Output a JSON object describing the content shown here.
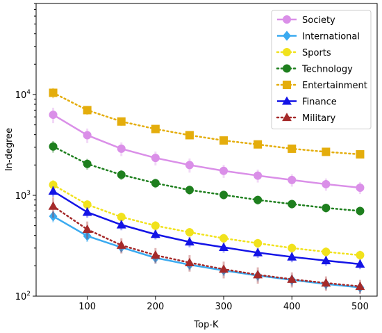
{
  "chart_data": {
    "type": "line",
    "xlabel": "Top-K",
    "ylabel": "In-degree",
    "yscale": "log",
    "xlim": [
      25,
      525
    ],
    "ylim": [
      100,
      80000
    ],
    "x": [
      50,
      100,
      150,
      200,
      250,
      300,
      350,
      400,
      450,
      500
    ],
    "xticks": [
      100,
      200,
      300,
      400,
      500
    ],
    "xtick_labels": [
      "100",
      "200",
      "300",
      "400",
      "500"
    ],
    "yticks": [
      100,
      1000,
      10000
    ],
    "ytick_labels": [
      {
        "base": "10",
        "exp": "2"
      },
      {
        "base": "10",
        "exp": "3"
      },
      {
        "base": "10",
        "exp": "4"
      }
    ],
    "grid": false,
    "legend_position": "top-right",
    "series": [
      {
        "name": "Society",
        "color": "#da8fe8",
        "line": "solid",
        "marker": "circle",
        "values": [
          6300,
          3950,
          2900,
          2350,
          2000,
          1750,
          1570,
          1420,
          1290,
          1190
        ],
        "errors": [
          1100,
          650,
          450,
          370,
          320,
          260,
          230,
          200,
          180,
          160
        ]
      },
      {
        "name": "International",
        "color": "#3aaaf0",
        "line": "solid",
        "marker": "diamond",
        "values": [
          620,
          395,
          305,
          240,
          205,
          180,
          160,
          145,
          132,
          122
        ],
        "errors": [
          80,
          50,
          35,
          30,
          25,
          22,
          20,
          18,
          16,
          15
        ]
      },
      {
        "name": "Sports",
        "color": "#f1e21c",
        "line": "dotted",
        "marker": "circle",
        "values": [
          1270,
          810,
          610,
          500,
          430,
          375,
          335,
          300,
          275,
          255
        ],
        "errors": [
          150,
          90,
          65,
          55,
          45,
          40,
          35,
          32,
          30,
          28
        ]
      },
      {
        "name": "Technology",
        "color": "#1e7f1e",
        "line": "dotted",
        "marker": "circle",
        "values": [
          3050,
          2050,
          1600,
          1320,
          1130,
          1010,
          900,
          820,
          750,
          700
        ],
        "errors": [
          400,
          250,
          180,
          140,
          120,
          100,
          90,
          80,
          75,
          70
        ]
      },
      {
        "name": "Entertainment",
        "color": "#e4ad0c",
        "line": "dotted",
        "marker": "square",
        "values": [
          10400,
          7000,
          5400,
          4550,
          3950,
          3500,
          3200,
          2900,
          2700,
          2550
        ],
        "errors": [
          1200,
          700,
          500,
          400,
          350,
          300,
          280,
          250,
          230,
          220
        ]
      },
      {
        "name": "Finance",
        "color": "#1414e6",
        "line": "solid",
        "marker": "triangle",
        "values": [
          1100,
          680,
          510,
          410,
          345,
          305,
          270,
          245,
          225,
          208
        ],
        "errors": [
          130,
          80,
          60,
          45,
          40,
          35,
          30,
          28,
          25,
          23
        ]
      },
      {
        "name": "Military",
        "color": "#a52a2a",
        "line": "dotted",
        "marker": "triangle",
        "values": [
          780,
          460,
          320,
          255,
          215,
          185,
          163,
          147,
          135,
          125
        ],
        "errors": [
          180,
          90,
          55,
          45,
          40,
          35,
          30,
          25,
          22,
          20
        ]
      }
    ]
  }
}
